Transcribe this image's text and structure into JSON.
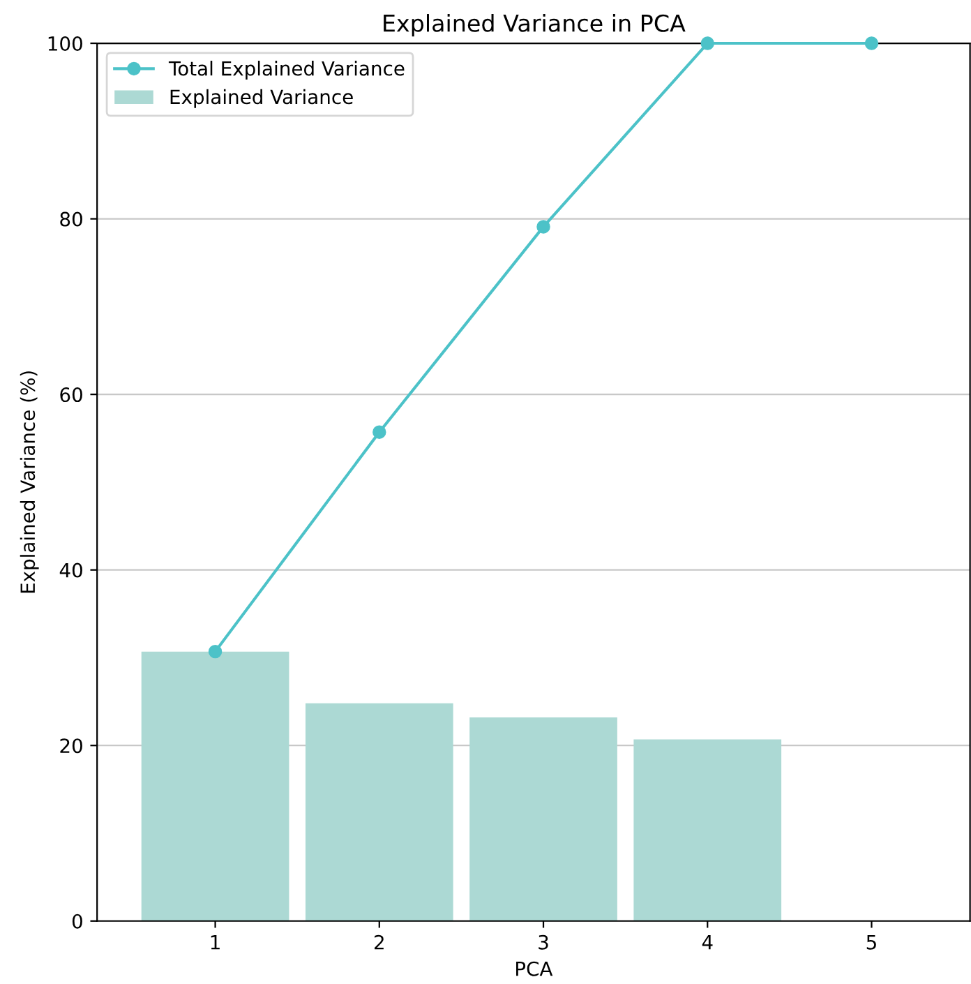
{
  "chart_data": {
    "type": "bar",
    "title": "Explained Variance in PCA",
    "xlabel": "PCA",
    "ylabel": "Explained Variance (%)",
    "x": [
      1,
      2,
      3,
      4,
      5
    ],
    "series": [
      {
        "name": "Total Explained Variance",
        "type": "line",
        "color": "#4cc2c8",
        "values": [
          30.7,
          55.7,
          79.1,
          100,
          100
        ],
        "marker": "circle"
      },
      {
        "name": "Explained Variance",
        "color": "#acd9d4",
        "values": [
          30.7,
          24.8,
          23.2,
          20.7,
          0
        ]
      }
    ],
    "xlim": [
      0.28,
      5.6
    ],
    "xticks": [
      1,
      2,
      3,
      4,
      5
    ],
    "ylim": [
      0,
      100
    ],
    "yticks": [
      0,
      20,
      40,
      60,
      80,
      100
    ],
    "grid": "y",
    "legend": "top left"
  }
}
